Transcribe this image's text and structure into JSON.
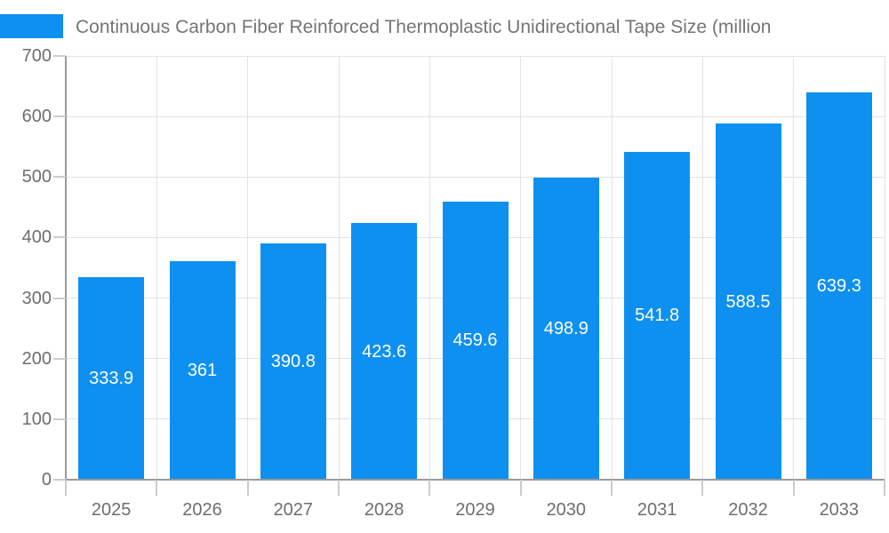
{
  "header": {
    "title": "Continuous Carbon Fiber Reinforced Thermoplastic Unidirectional Tape Size (million",
    "title_color": "#757575"
  },
  "legend": {
    "swatch_color": "#0e90f0"
  },
  "chart_data": {
    "type": "bar",
    "title": "Continuous Carbon Fiber Reinforced Thermoplastic Unidirectional Tape Size (million",
    "categories": [
      "2025",
      "2026",
      "2027",
      "2028",
      "2029",
      "2030",
      "2031",
      "2032",
      "2033"
    ],
    "values": [
      333.9,
      361,
      390.8,
      423.6,
      459.6,
      498.9,
      541.8,
      588.5,
      639.3
    ],
    "value_labels": [
      "333.9",
      "361",
      "390.8",
      "423.6",
      "459.6",
      "498.9",
      "541.8",
      "588.5",
      "639.3"
    ],
    "xlabel": "",
    "ylabel": "",
    "ylim": [
      0,
      700
    ],
    "yticks": [
      0,
      100,
      200,
      300,
      400,
      500,
      600,
      700
    ],
    "grid": true,
    "legend_position": "top-left",
    "bar_color": "#0e90f0",
    "value_label_color": "#ffffff",
    "axis_text_color": "#6e6e6e",
    "grid_color": "#e3e3e3",
    "axis_line_color": "#9a9a9a",
    "tick_color": "#cccccc"
  }
}
